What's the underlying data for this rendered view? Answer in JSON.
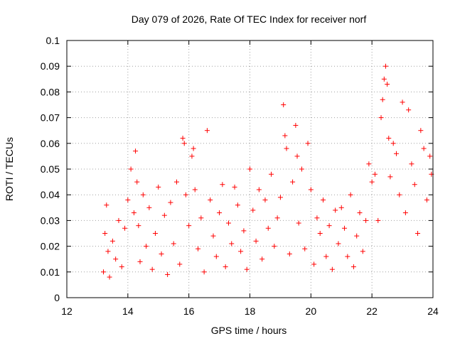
{
  "chart_data": {
    "type": "scatter",
    "title": "Day 079 of 2026, Rate Of TEC Index for receiver norf",
    "xlabel": "GPS time / hours",
    "ylabel": "ROTI / TECUs",
    "xlim": [
      12,
      24
    ],
    "ylim": [
      0,
      0.1
    ],
    "x_ticks": [
      "12",
      "14",
      "16",
      "18",
      "20",
      "22",
      "24"
    ],
    "y_ticks": [
      "0",
      "0.01",
      "0.02",
      "0.03",
      "0.04",
      "0.05",
      "0.06",
      "0.07",
      "0.08",
      "0.09",
      "0.1"
    ],
    "grid": true,
    "marker": "+",
    "color": "#ff0000",
    "series": [
      {
        "name": "ROTI",
        "x": [
          13.2,
          13.25,
          13.3,
          13.35,
          13.4,
          13.5,
          13.6,
          13.7,
          13.8,
          13.9,
          14.0,
          14.1,
          14.2,
          14.25,
          14.3,
          14.35,
          14.4,
          14.5,
          14.6,
          14.7,
          14.8,
          14.9,
          15.0,
          15.1,
          15.2,
          15.3,
          15.4,
          15.5,
          15.6,
          15.7,
          15.8,
          15.85,
          15.9,
          16.0,
          16.1,
          16.15,
          16.2,
          16.3,
          16.4,
          16.5,
          16.6,
          16.7,
          16.8,
          16.9,
          17.0,
          17.1,
          17.2,
          17.3,
          17.4,
          17.5,
          17.6,
          17.7,
          17.8,
          17.9,
          18.0,
          18.1,
          18.2,
          18.3,
          18.4,
          18.5,
          18.6,
          18.7,
          18.8,
          18.9,
          19.0,
          19.1,
          19.15,
          19.2,
          19.3,
          19.4,
          19.5,
          19.55,
          19.6,
          19.7,
          19.8,
          19.9,
          20.0,
          20.1,
          20.2,
          20.3,
          20.4,
          20.5,
          20.6,
          20.7,
          20.8,
          20.9,
          21.0,
          21.1,
          21.2,
          21.3,
          21.4,
          21.5,
          21.6,
          21.7,
          21.8,
          21.9,
          22.0,
          22.1,
          22.2,
          22.3,
          22.35,
          22.4,
          22.45,
          22.5,
          22.55,
          22.6,
          22.7,
          22.8,
          22.9,
          23.0,
          23.1,
          23.2,
          23.3,
          23.4,
          23.5,
          23.6,
          23.7,
          23.8,
          23.9,
          23.95
        ],
        "y": [
          0.01,
          0.025,
          0.036,
          0.018,
          0.008,
          0.022,
          0.015,
          0.03,
          0.012,
          0.027,
          0.038,
          0.05,
          0.033,
          0.057,
          0.045,
          0.028,
          0.014,
          0.04,
          0.02,
          0.035,
          0.011,
          0.025,
          0.043,
          0.017,
          0.032,
          0.009,
          0.037,
          0.021,
          0.045,
          0.013,
          0.062,
          0.06,
          0.04,
          0.028,
          0.055,
          0.058,
          0.042,
          0.019,
          0.031,
          0.01,
          0.065,
          0.038,
          0.024,
          0.016,
          0.033,
          0.044,
          0.012,
          0.029,
          0.021,
          0.043,
          0.036,
          0.018,
          0.026,
          0.011,
          0.05,
          0.034,
          0.022,
          0.042,
          0.015,
          0.038,
          0.027,
          0.048,
          0.02,
          0.031,
          0.039,
          0.075,
          0.063,
          0.058,
          0.017,
          0.045,
          0.067,
          0.055,
          0.029,
          0.05,
          0.019,
          0.06,
          0.042,
          0.013,
          0.031,
          0.025,
          0.038,
          0.016,
          0.028,
          0.011,
          0.034,
          0.021,
          0.035,
          0.027,
          0.016,
          0.04,
          0.012,
          0.024,
          0.033,
          0.018,
          0.03,
          0.052,
          0.045,
          0.048,
          0.03,
          0.07,
          0.077,
          0.085,
          0.09,
          0.083,
          0.062,
          0.047,
          0.06,
          0.056,
          0.04,
          0.076,
          0.033,
          0.073,
          0.052,
          0.044,
          0.025,
          0.065,
          0.058,
          0.038,
          0.055,
          0.048
        ]
      }
    ]
  }
}
